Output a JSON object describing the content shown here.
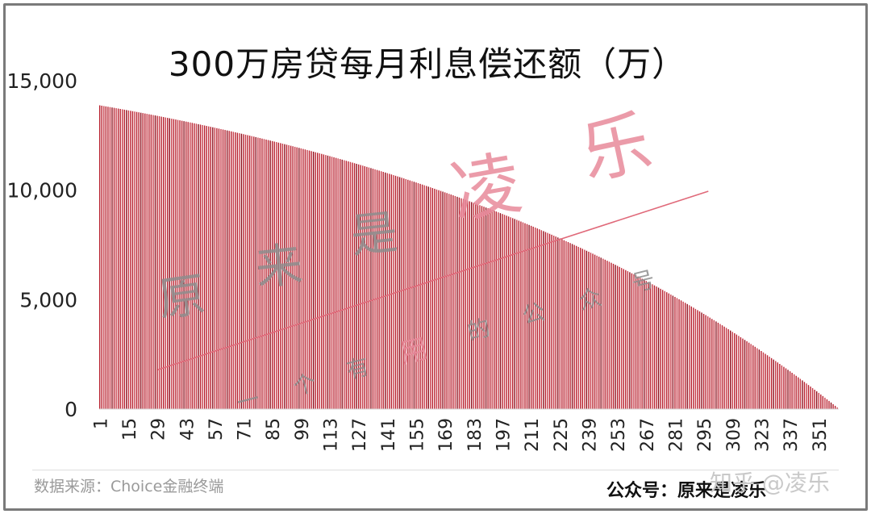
{
  "chart_data": {
    "type": "bar",
    "title": "300万房贷每月利息偿还额（万）",
    "xlabel": "",
    "ylabel": "",
    "ylim": [
      0,
      15000
    ],
    "yticks": [
      "0",
      "5,000",
      "10,000",
      "15,000"
    ],
    "x_tick_labels": [
      "1",
      "15",
      "29",
      "43",
      "57",
      "71",
      "85",
      "99",
      "113",
      "127",
      "141",
      "155",
      "169",
      "183",
      "197",
      "211",
      "225",
      "239",
      "253",
      "267",
      "281",
      "295",
      "309",
      "323",
      "337",
      "351"
    ],
    "num_periods": 360,
    "first_value": 13875,
    "last_value": 0,
    "series_color": "#b8202e",
    "trendline": {
      "from_period": 29,
      "from_value": 1800,
      "to_period": 297,
      "to_value": 9950,
      "color": "#e06a7a"
    },
    "grid": false,
    "legend": "none"
  },
  "watermark": {
    "chars": [
      "原",
      "来",
      "是",
      "凌",
      "乐"
    ],
    "small_chars": [
      "一",
      "个",
      "有",
      "用",
      "的",
      "公",
      "众",
      "号"
    ],
    "color": "#e8899a",
    "gray": "#8d8d8d"
  },
  "footer": {
    "source": "数据来源：Choice金融终端",
    "account": "公众号：原来是凌乐",
    "site_mark": "知乎 @凌乐"
  }
}
